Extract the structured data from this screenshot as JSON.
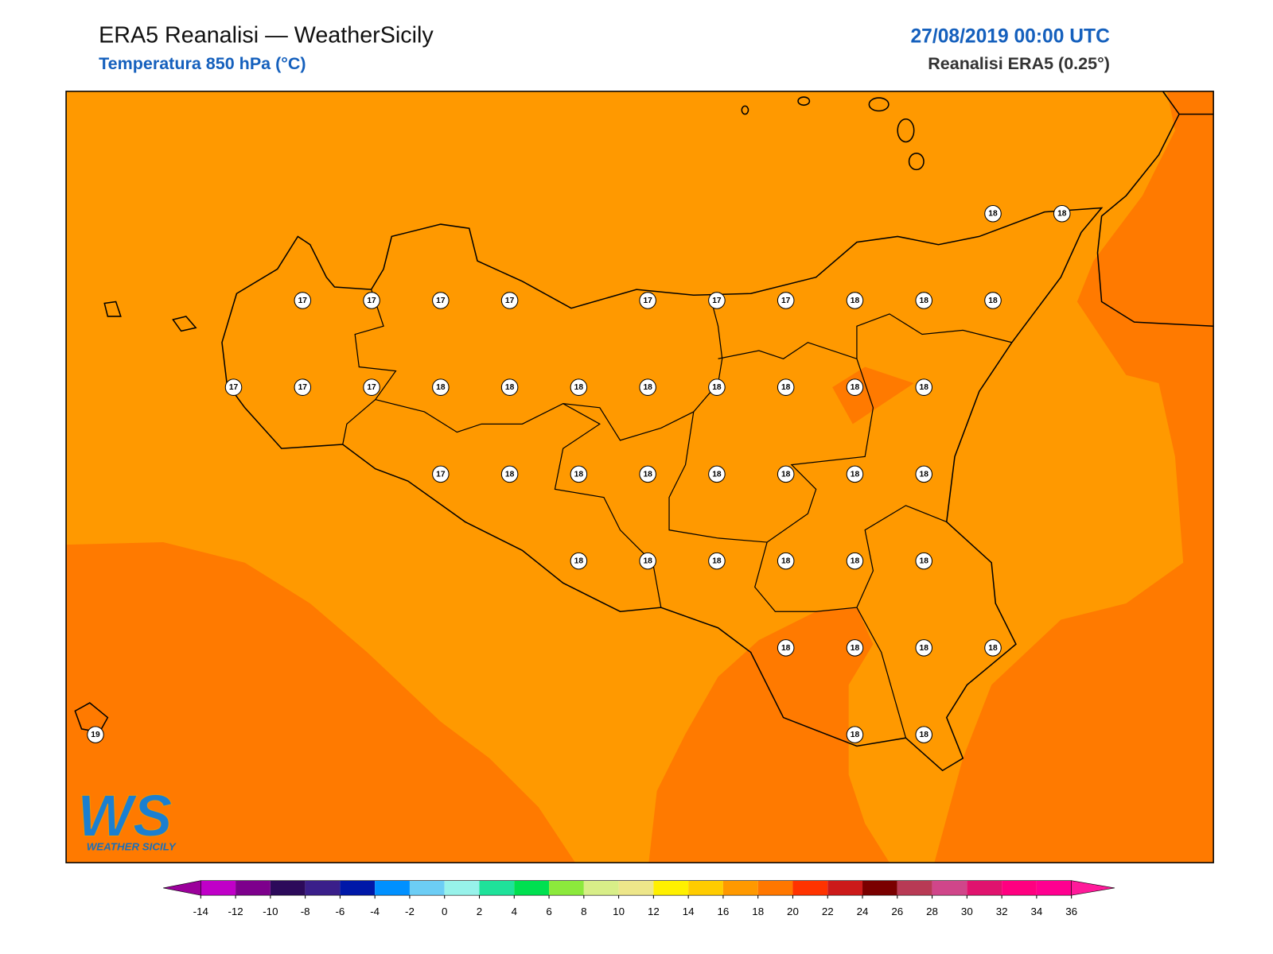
{
  "header": {
    "title": "ERA5 Reanalisi — WeatherSicily",
    "subtitle": "Temperatura 850 hPa (°C)",
    "valid_time": "27/08/2019 00:00 UTC",
    "source": "Reanalisi ERA5 (0.25°)"
  },
  "stations": {
    "rows": [
      [
        null,
        null,
        null,
        null,
        null,
        null,
        null,
        null,
        null,
        null,
        null,
        null,
        null,
        18,
        18
      ],
      [
        null,
        null,
        null,
        17,
        17,
        17,
        17,
        null,
        17,
        17,
        17,
        18,
        18,
        18,
        null
      ],
      [
        null,
        null,
        17,
        17,
        17,
        18,
        18,
        18,
        18,
        18,
        18,
        18,
        18,
        null,
        null
      ],
      [
        null,
        null,
        null,
        null,
        null,
        17,
        18,
        18,
        18,
        18,
        18,
        18,
        18,
        null,
        null
      ],
      [
        null,
        null,
        null,
        null,
        null,
        null,
        null,
        18,
        18,
        18,
        18,
        18,
        18,
        null,
        null
      ],
      [
        null,
        null,
        null,
        null,
        null,
        null,
        null,
        null,
        null,
        null,
        18,
        18,
        18,
        18,
        null
      ],
      [
        19,
        null,
        null,
        null,
        null,
        null,
        null,
        null,
        null,
        null,
        null,
        18,
        18,
        null,
        null
      ]
    ]
  },
  "colorbar": {
    "ticks": [
      -14,
      -12,
      -10,
      -8,
      -6,
      -4,
      -2,
      0,
      2,
      4,
      6,
      8,
      10,
      12,
      14,
      16,
      18,
      20,
      22,
      24,
      26,
      28,
      30,
      32,
      34,
      36
    ],
    "colors": [
      "#c000c8",
      "#7d008c",
      "#2c0a5a",
      "#3a1f8a",
      "#0018a8",
      "#0090ff",
      "#6ccdf5",
      "#97f2ea",
      "#1fe29a",
      "#00e050",
      "#8ce93c",
      "#d8ee88",
      "#ede68a",
      "#fff000",
      "#ffcc00",
      "#ff9900",
      "#ff7700",
      "#ff3300",
      "#cc1a1a",
      "#7a0000",
      "#b83a55",
      "#d0468a",
      "#e0136e",
      "#ff0080",
      "#ff0090"
    ],
    "under_color": "#9b009b",
    "over_color": "#ff1a9a"
  },
  "logo": {
    "mark": "WS",
    "text": "WEATHER SICILY"
  }
}
